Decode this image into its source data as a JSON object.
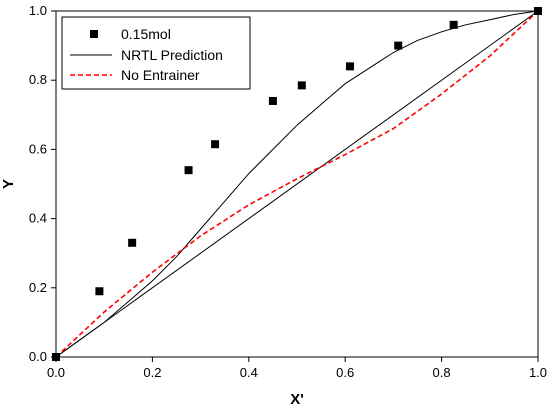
{
  "chart_data": {
    "type": "scatter",
    "xlabel": "X'",
    "ylabel": "Y",
    "xlim": [
      0,
      1
    ],
    "ylim": [
      0,
      1
    ],
    "x_ticks": [
      "0.0",
      "0.2",
      "0.4",
      "0.6",
      "0.8",
      "1.0"
    ],
    "y_ticks": [
      "0.0",
      "0.2",
      "0.4",
      "0.6",
      "0.8",
      "1.0"
    ],
    "grid": false,
    "legend_position": "top-left",
    "series": [
      {
        "name": "0.15mol",
        "kind": "markers",
        "marker": "square",
        "color": "#000000",
        "points": [
          [
            0.0,
            0.0
          ],
          [
            0.09,
            0.19
          ],
          [
            0.158,
            0.33
          ],
          [
            0.275,
            0.54
          ],
          [
            0.33,
            0.615
          ],
          [
            0.45,
            0.74
          ],
          [
            0.51,
            0.785
          ],
          [
            0.61,
            0.84
          ],
          [
            0.71,
            0.9
          ],
          [
            0.825,
            0.96
          ],
          [
            1.0,
            1.0
          ]
        ]
      },
      {
        "name": "NRTL Prediction",
        "kind": "line",
        "color": "#000000",
        "dash": "solid",
        "points": [
          [
            0.0,
            0.0
          ],
          [
            0.05,
            0.05
          ],
          [
            0.1,
            0.1
          ],
          [
            0.15,
            0.16
          ],
          [
            0.2,
            0.22
          ],
          [
            0.25,
            0.29
          ],
          [
            0.3,
            0.37
          ],
          [
            0.35,
            0.45
          ],
          [
            0.4,
            0.53
          ],
          [
            0.45,
            0.6
          ],
          [
            0.5,
            0.67
          ],
          [
            0.55,
            0.73
          ],
          [
            0.6,
            0.79
          ],
          [
            0.65,
            0.835
          ],
          [
            0.7,
            0.88
          ],
          [
            0.75,
            0.915
          ],
          [
            0.8,
            0.94
          ],
          [
            0.85,
            0.96
          ],
          [
            0.9,
            0.975
          ],
          [
            0.95,
            0.99
          ],
          [
            1.0,
            1.0
          ]
        ]
      },
      {
        "name": "",
        "kind": "line",
        "color": "#000000",
        "dash": "solid",
        "points": [
          [
            0.0,
            0.0
          ],
          [
            1.0,
            1.0
          ]
        ]
      },
      {
        "name": "No Entrainer",
        "kind": "line",
        "color": "#ff0000",
        "dash": "dashed",
        "points": [
          [
            0.0,
            0.0
          ],
          [
            0.1,
            0.13
          ],
          [
            0.2,
            0.245
          ],
          [
            0.3,
            0.35
          ],
          [
            0.4,
            0.44
          ],
          [
            0.5,
            0.515
          ],
          [
            0.6,
            0.585
          ],
          [
            0.7,
            0.66
          ],
          [
            0.8,
            0.76
          ],
          [
            0.9,
            0.87
          ],
          [
            1.0,
            1.0
          ]
        ]
      }
    ]
  }
}
